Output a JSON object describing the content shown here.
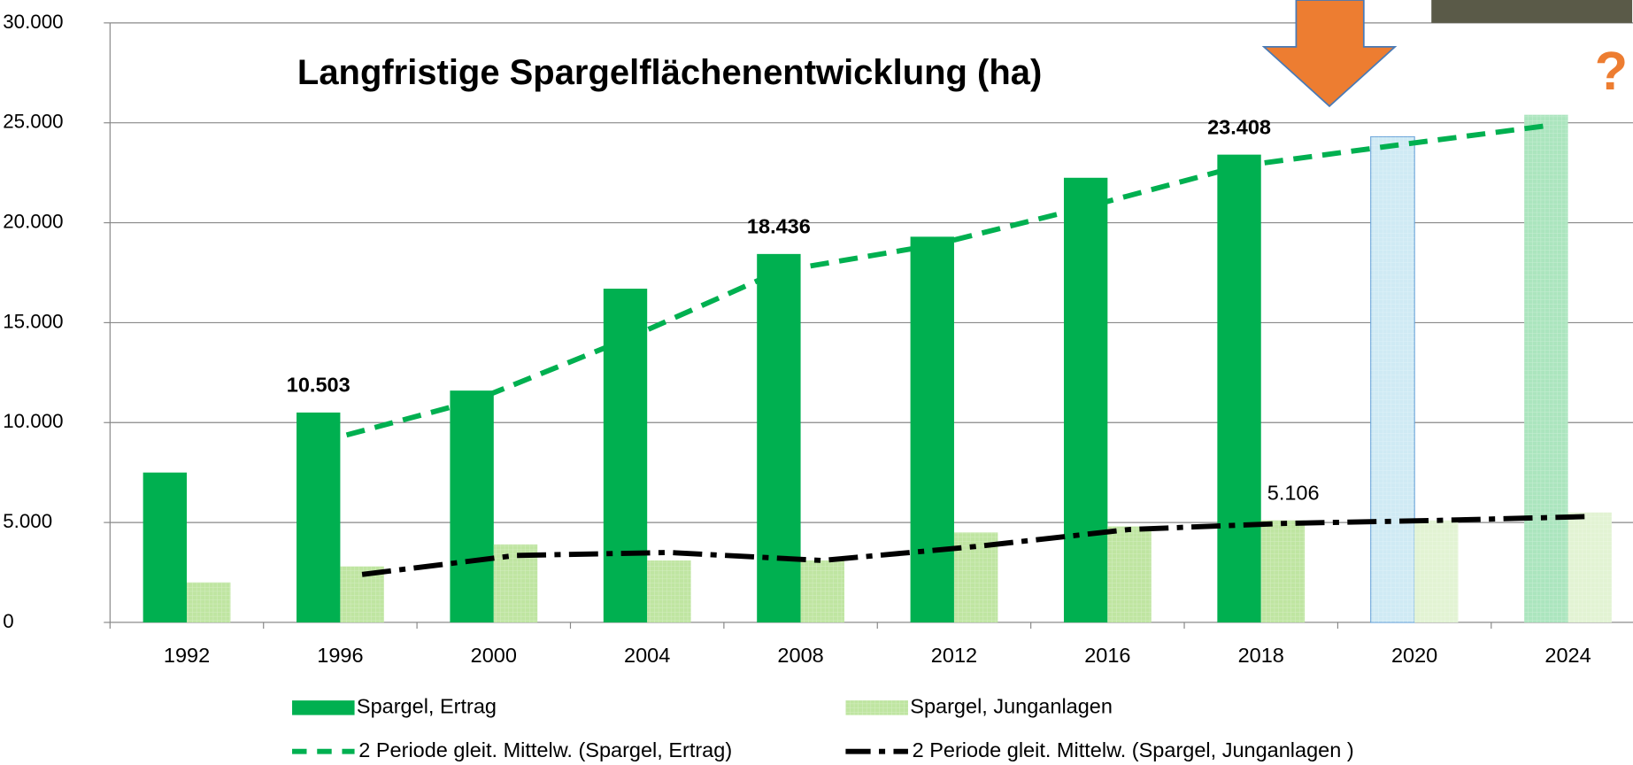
{
  "chart_data": {
    "type": "bar",
    "title": "Langfristige Spargelflächenentwicklung (ha)",
    "annotations": [
      "?"
    ],
    "categories": [
      "1992",
      "1996",
      "2000",
      "2004",
      "2008",
      "2012",
      "2016",
      "2018",
      "2020",
      "2024"
    ],
    "series": [
      {
        "name": "Spargel, Ertrag",
        "color": "#00b050",
        "colors": [
          "#00b050",
          "#00b050",
          "#00b050",
          "#00b050",
          "#00b050",
          "#00b050",
          "#00b050",
          "#00b050",
          "#bfe3f0",
          "#8fdca8"
        ],
        "values": [
          7500,
          10503,
          11600,
          16700,
          18436,
          19300,
          22250,
          23408,
          24300,
          25400
        ],
        "value_labels": [
          null,
          "10.503",
          null,
          null,
          "18.436",
          null,
          null,
          "23.408",
          null,
          null
        ]
      },
      {
        "name": "Spargel, Junganlagen",
        "color": "#a9dc82",
        "colors": [
          "#a9dc82",
          "#a9dc82",
          "#a9dc82",
          "#a9dc82",
          "#a9dc82",
          "#a9dc82",
          "#a9dc82",
          "#a9dc82",
          "#d8efc4",
          "#d8efc4"
        ],
        "values": [
          2000,
          2800,
          3900,
          3100,
          3100,
          4500,
          4800,
          5106,
          5100,
          5500
        ],
        "value_labels": [
          null,
          null,
          null,
          null,
          null,
          null,
          null,
          "5.106",
          null,
          null
        ]
      }
    ],
    "trendlines": [
      {
        "name": "2 Periode gleit. Mittelw. (Spargel, Ertrag)",
        "color": "#00b050",
        "values": [
          null,
          9001.5,
          11051.5,
          14150,
          17568,
          18868,
          20775,
          22829,
          23854,
          24850
        ]
      },
      {
        "name": "2 Periode gleit. Mittelw. (Spargel, Junganlagen )",
        "color": "#000000",
        "values": [
          null,
          2400,
          3350,
          3500,
          3100,
          3800,
          4650,
          4953,
          5103,
          5300
        ]
      }
    ],
    "ylim": [
      0,
      30000
    ],
    "yticks": [
      0,
      {
        "value": 5000,
        "label": "5.000"
      },
      {
        "value": 10000,
        "label": "10.000"
      },
      {
        "value": 15000,
        "label": "15.000"
      },
      {
        "value": 20000,
        "label": "20.000"
      },
      {
        "value": 25000,
        "label": "25.000"
      },
      {
        "value": 30000,
        "label": "30.000"
      }
    ],
    "grid": true
  }
}
